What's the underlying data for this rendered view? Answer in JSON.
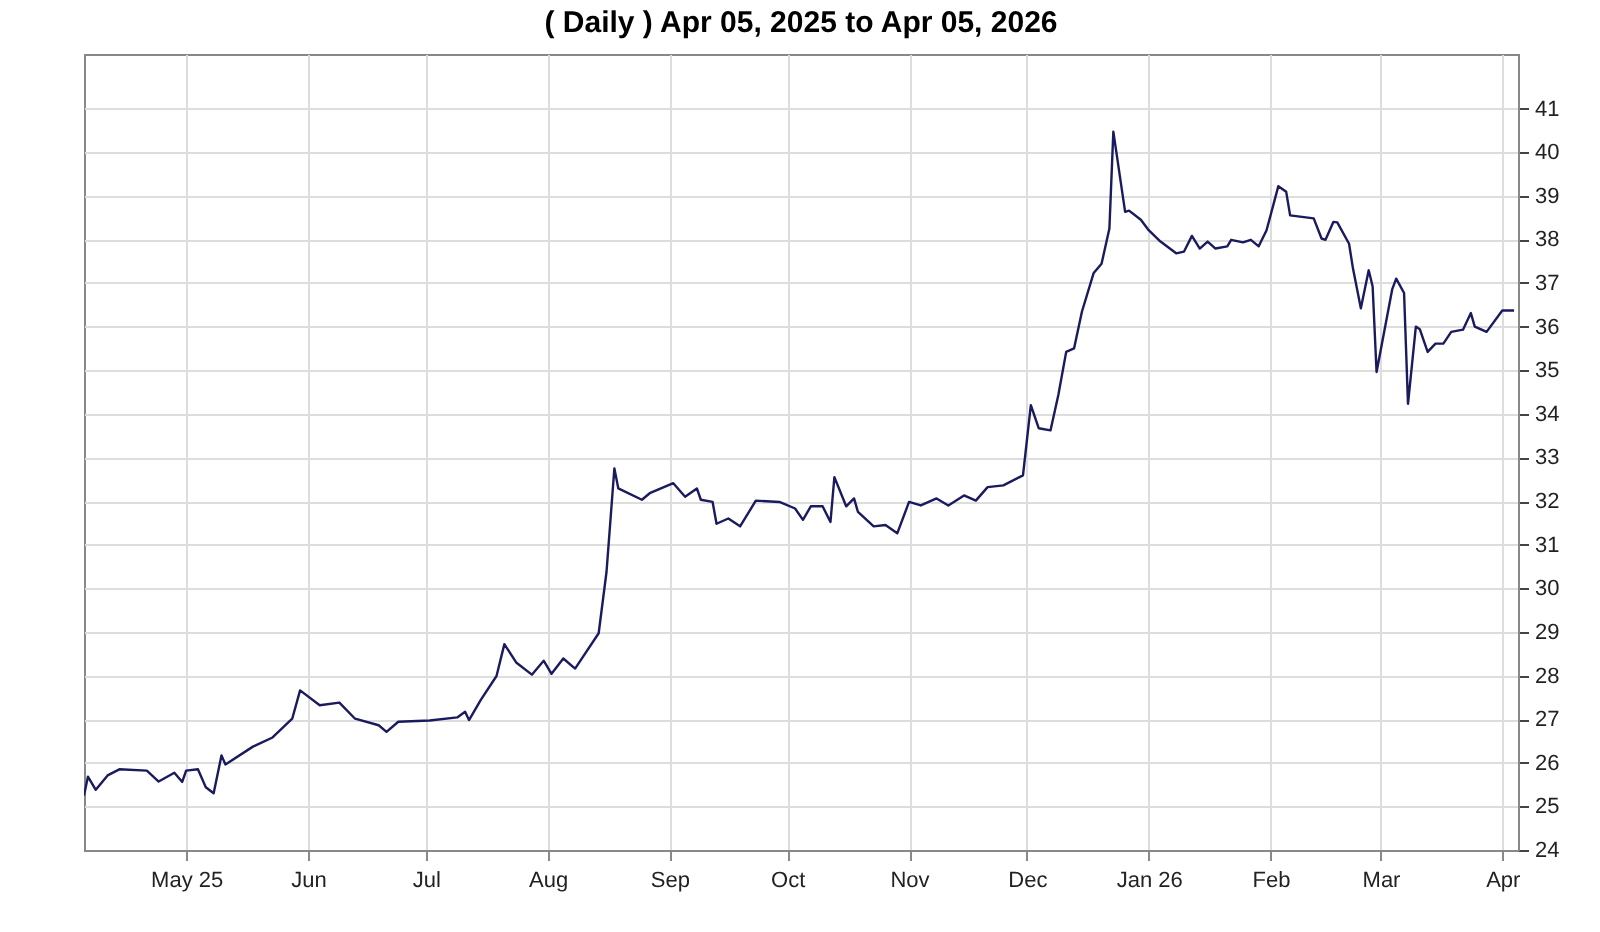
{
  "chart_data": {
    "type": "line",
    "title": "( Daily ) Apr 05, 2025 to Apr 05, 2026",
    "x": [
      "2025-04-05",
      "2025-04-06",
      "2025-04-08",
      "2025-04-11",
      "2025-04-14",
      "2025-04-21",
      "2025-04-24",
      "2025-04-28",
      "2025-04-30",
      "2025-05-01",
      "2025-05-04",
      "2025-05-06",
      "2025-05-08",
      "2025-05-10",
      "2025-05-11",
      "2025-05-18",
      "2025-05-23",
      "2025-05-28",
      "2025-05-30",
      "2025-06-04",
      "2025-06-09",
      "2025-06-13",
      "2025-06-19",
      "2025-06-21",
      "2025-06-24",
      "2025-07-02",
      "2025-07-09",
      "2025-07-11",
      "2025-07-12",
      "2025-07-15",
      "2025-07-19",
      "2025-07-21",
      "2025-07-24",
      "2025-07-28",
      "2025-07-31",
      "2025-08-02",
      "2025-08-05",
      "2025-08-08",
      "2025-08-14",
      "2025-08-16",
      "2025-08-18",
      "2025-08-19",
      "2025-08-25",
      "2025-08-27",
      "2025-09-02",
      "2025-09-05",
      "2025-09-08",
      "2025-09-09",
      "2025-09-12",
      "2025-09-13",
      "2025-09-16",
      "2025-09-19",
      "2025-09-23",
      "2025-09-29",
      "2025-10-03",
      "2025-10-05",
      "2025-10-07",
      "2025-10-10",
      "2025-10-12",
      "2025-10-13",
      "2025-10-16",
      "2025-10-18",
      "2025-10-19",
      "2025-10-23",
      "2025-10-26",
      "2025-10-29",
      "2025-11-01",
      "2025-11-04",
      "2025-11-08",
      "2025-11-11",
      "2025-11-15",
      "2025-11-18",
      "2025-11-21",
      "2025-11-25",
      "2025-11-30",
      "2025-12-02",
      "2025-12-04",
      "2025-12-07",
      "2025-12-09",
      "2025-12-11",
      "2025-12-13",
      "2025-12-15",
      "2025-12-18",
      "2025-12-20",
      "2025-12-22",
      "2025-12-23",
      "2025-12-26",
      "2025-12-27",
      "2025-12-30",
      "2026-01-01",
      "2026-01-04",
      "2026-01-08",
      "2026-01-10",
      "2026-01-12",
      "2026-01-14",
      "2026-01-16",
      "2026-01-18",
      "2026-01-21",
      "2026-01-22",
      "2026-01-25",
      "2026-01-27",
      "2026-01-29",
      "2026-01-31",
      "2026-02-03",
      "2026-02-05",
      "2026-02-06",
      "2026-02-12",
      "2026-02-14",
      "2026-02-15",
      "2026-02-17",
      "2026-02-18",
      "2026-02-21",
      "2026-02-22",
      "2026-02-24",
      "2026-02-26",
      "2026-02-27",
      "2026-02-28",
      "2026-03-04",
      "2026-03-05",
      "2026-03-07",
      "2026-03-08",
      "2026-03-10",
      "2026-03-11",
      "2026-03-13",
      "2026-03-15",
      "2026-03-17",
      "2026-03-19",
      "2026-03-22",
      "2026-03-24",
      "2026-03-25",
      "2026-03-28",
      "2026-04-01",
      "2026-04-04"
    ],
    "series": [
      {
        "color": "#1a1a5e",
        "values": [
          25.25,
          25.68,
          25.38,
          25.71,
          25.85,
          25.82,
          25.57,
          25.77,
          25.56,
          25.82,
          25.85,
          25.44,
          25.3,
          26.17,
          25.96,
          26.37,
          26.58,
          27.01,
          27.66,
          27.32,
          27.38,
          27.01,
          26.86,
          26.71,
          26.94,
          26.97,
          27.04,
          27.17,
          26.98,
          27.44,
          27.99,
          28.72,
          28.3,
          28.02,
          28.34,
          28.04,
          28.39,
          28.16,
          28.97,
          30.38,
          32.75,
          32.29,
          32.03,
          32.18,
          32.41,
          32.1,
          32.29,
          32.03,
          31.98,
          31.48,
          31.6,
          31.42,
          32.01,
          31.98,
          31.83,
          31.57,
          31.88,
          31.88,
          31.52,
          32.55,
          31.88,
          32.06,
          31.75,
          31.42,
          31.45,
          31.26,
          31.98,
          31.9,
          32.06,
          31.9,
          32.13,
          32.01,
          32.32,
          32.36,
          32.59,
          34.2,
          33.67,
          33.62,
          34.43,
          35.42,
          35.5,
          36.34,
          37.23,
          37.44,
          38.25,
          40.47,
          38.63,
          38.66,
          38.45,
          38.21,
          37.95,
          37.68,
          37.72,
          38.08,
          37.79,
          37.95,
          37.79,
          37.84,
          37.99,
          37.93,
          37.99,
          37.84,
          38.21,
          39.22,
          39.09,
          38.55,
          38.48,
          38.02,
          37.99,
          38.4,
          38.39,
          37.9,
          37.33,
          36.42,
          37.29,
          36.92,
          34.96,
          36.86,
          37.1,
          36.77,
          34.23,
          36.0,
          35.94,
          35.42,
          35.61,
          35.61,
          35.88,
          35.93,
          36.31,
          36.0,
          35.88,
          36.37,
          36.37
        ]
      }
    ],
    "xlim": [
      "2025-04-05",
      "2026-04-05"
    ],
    "xticks": [
      {
        "value": "2025-05-01",
        "label": "May 25"
      },
      {
        "value": "2025-06-01",
        "label": "Jun"
      },
      {
        "value": "2025-07-01",
        "label": "Jul"
      },
      {
        "value": "2025-08-01",
        "label": "Aug"
      },
      {
        "value": "2025-09-01",
        "label": "Sep"
      },
      {
        "value": "2025-10-01",
        "label": "Oct"
      },
      {
        "value": "2025-11-01",
        "label": "Nov"
      },
      {
        "value": "2025-12-01",
        "label": "Dec"
      },
      {
        "value": "2026-01-01",
        "label": "Jan 26"
      },
      {
        "value": "2026-02-01",
        "label": "Feb"
      },
      {
        "value": "2026-03-01",
        "label": "Mar"
      },
      {
        "value": "2026-04-01",
        "label": "Apr"
      }
    ],
    "ylim": [
      24,
      42.25
    ],
    "yticks": [
      24,
      25,
      26,
      27,
      28,
      29,
      30,
      31,
      32,
      33,
      34,
      35,
      36,
      37,
      38,
      39,
      40,
      41
    ],
    "grid": true,
    "marker": "none",
    "line_style": "solid"
  }
}
